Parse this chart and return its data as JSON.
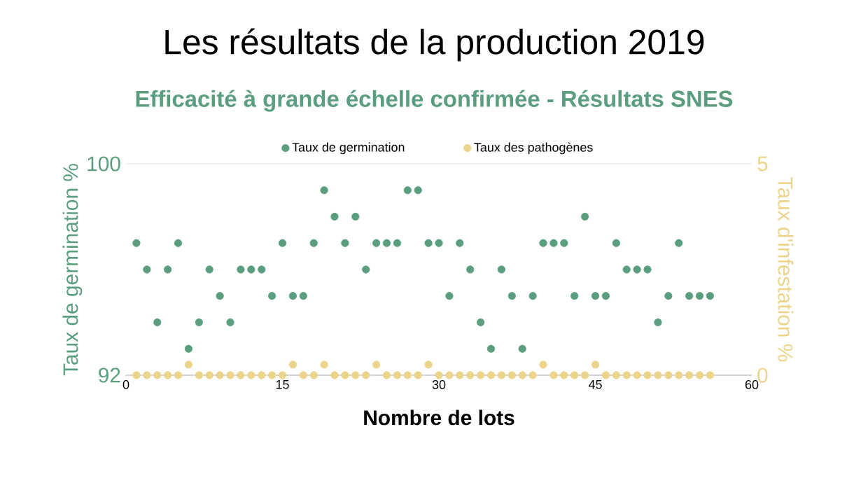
{
  "chart_data": {
    "type": "scatter",
    "title": "Les résultats de la production 2019",
    "subtitle": "Efficacité à grande échelle confirmée - Résultats SNES",
    "xlabel": "Nombre de lots",
    "ylabel": "Taux de germination %",
    "y2label": "Taux d'infestation %",
    "x": [
      1,
      2,
      3,
      4,
      5,
      6,
      7,
      8,
      9,
      10,
      11,
      12,
      13,
      14,
      15,
      16,
      17,
      18,
      19,
      20,
      21,
      22,
      23,
      24,
      25,
      26,
      27,
      28,
      29,
      30,
      31,
      32,
      33,
      34,
      35,
      36,
      37,
      38,
      39,
      40,
      41,
      42,
      43,
      44,
      45,
      46,
      47,
      48,
      49,
      50,
      51,
      52,
      53,
      54,
      55,
      56
    ],
    "series": [
      {
        "name": "Taux de germination",
        "color": "#5a9e7f",
        "values": [
          97,
          96,
          94,
          96,
          97,
          93,
          94,
          96,
          95,
          94,
          96,
          96,
          96,
          95,
          97,
          95,
          95,
          97,
          99,
          98,
          97,
          98,
          96,
          97,
          97,
          97,
          99,
          99,
          97,
          97,
          95,
          97,
          96,
          94,
          93,
          96,
          95,
          93,
          95,
          97,
          97,
          97,
          95,
          98,
          95,
          95,
          97,
          96,
          96,
          96,
          94,
          95,
          97,
          95,
          95,
          95
        ]
      },
      {
        "name": "Taux des pathogènes",
        "color": "#ecd48a",
        "axis": "y2",
        "values": [
          0,
          0,
          0,
          0,
          0,
          0.25,
          0,
          0,
          0,
          0,
          0,
          0,
          0,
          0,
          0,
          0.25,
          0,
          0,
          0.25,
          0,
          0,
          0,
          0,
          0.25,
          0,
          0,
          0,
          0,
          0.25,
          0,
          0,
          0,
          0,
          0,
          0,
          0,
          0,
          0,
          0,
          0.25,
          0,
          0,
          0,
          0,
          0.25,
          0,
          0,
          0,
          0,
          0,
          0,
          0,
          0,
          0,
          0,
          0
        ]
      }
    ],
    "xlim": [
      0,
      60
    ],
    "xticks": [
      0,
      15,
      30,
      45,
      60
    ],
    "ylim": [
      92,
      100
    ],
    "yticks": [
      92,
      100
    ],
    "y2lim": [
      0,
      5
    ],
    "y2ticks": [
      0,
      5
    ],
    "grid": "y",
    "legend": "top",
    "marker": "circle"
  }
}
